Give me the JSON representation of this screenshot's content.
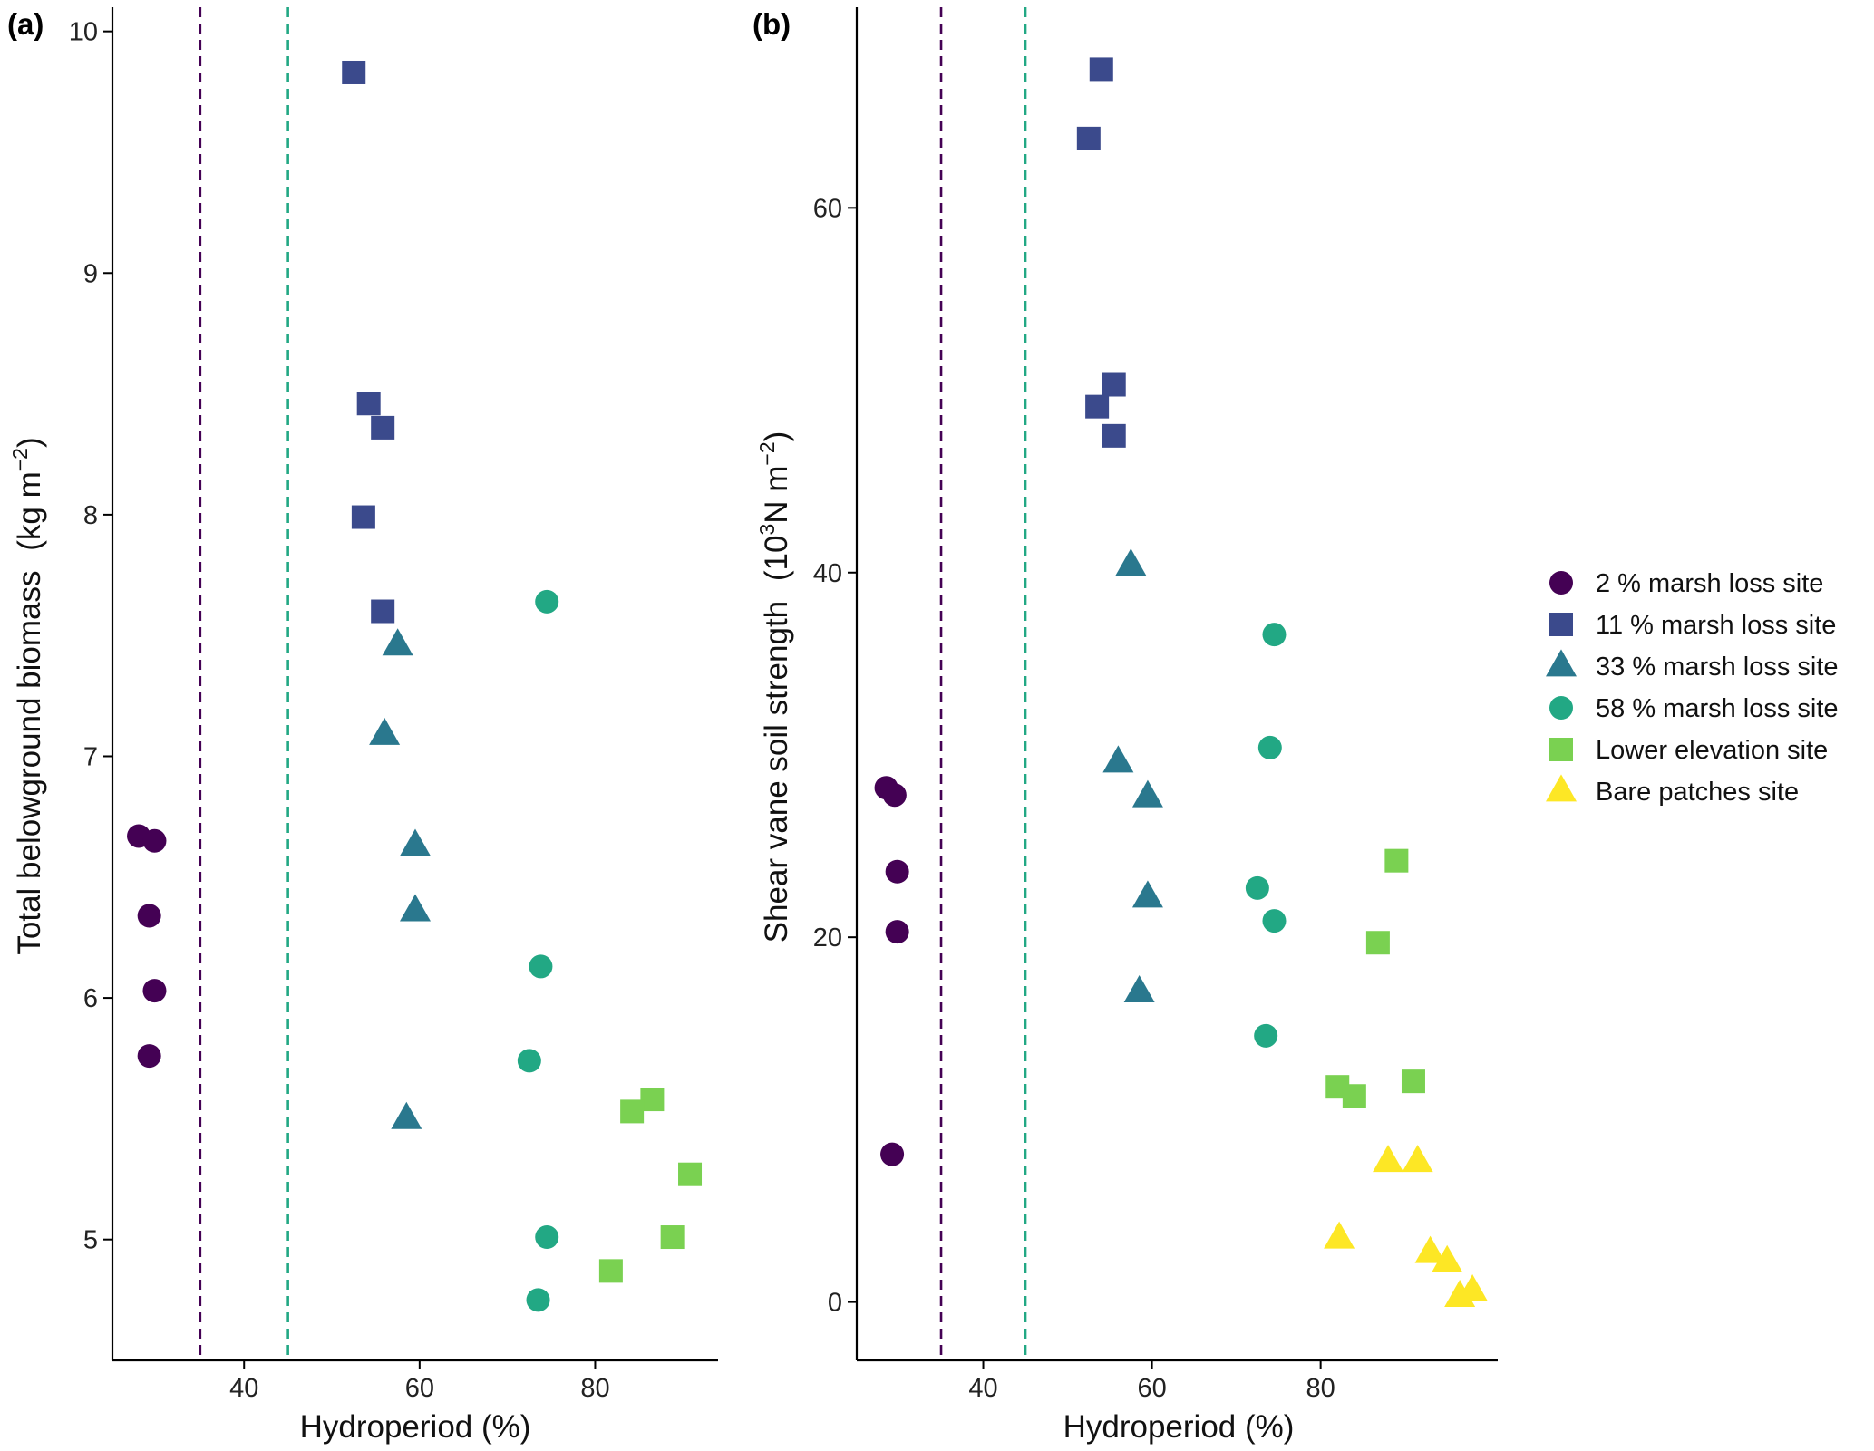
{
  "legend": {
    "entries": [
      {
        "label": "2 % marsh loss site",
        "color": "#440154",
        "shape": "circle"
      },
      {
        "label": "11 % marsh loss site",
        "color": "#3b4a8c",
        "shape": "square"
      },
      {
        "label": "33 % marsh loss site",
        "color": "#2a788e",
        "shape": "triangle"
      },
      {
        "label": "58 % marsh loss site",
        "color": "#22a884",
        "shape": "circle"
      },
      {
        "label": "Lower elevation site",
        "color": "#7ad151",
        "shape": "square"
      },
      {
        "label": "Bare patches site",
        "color": "#fde725",
        "shape": "triangle"
      }
    ]
  },
  "chart_data": [
    {
      "type": "scatter",
      "panel_label": "(a)",
      "xlabel": "Hydroperiod (%)",
      "ylabel": "Total belowground biomass",
      "ylabel_unit": "(kg m",
      "ylabel_sup": "−2",
      "ylabel_close": ")",
      "xlim": [
        25,
        94
      ],
      "ylim": [
        4.5,
        10.1
      ],
      "xticks": [
        40,
        60,
        80
      ],
      "yticks": [
        5,
        6,
        7,
        8,
        9,
        10
      ],
      "vlines": [
        {
          "x": 35,
          "color": "#440154"
        },
        {
          "x": 45,
          "color": "#22a884"
        }
      ],
      "series": [
        {
          "name": "2 % marsh loss site",
          "points": [
            [
              28,
              6.67
            ],
            [
              29.8,
              6.65
            ],
            [
              29.2,
              6.34
            ],
            [
              29.8,
              6.03
            ],
            [
              29.2,
              5.76
            ]
          ]
        },
        {
          "name": "11 % marsh loss site",
          "points": [
            [
              52.5,
              9.83
            ],
            [
              54.2,
              8.46
            ],
            [
              55.8,
              8.36
            ],
            [
              53.6,
              7.99
            ],
            [
              55.8,
              7.6
            ]
          ]
        },
        {
          "name": "33 % marsh loss site",
          "points": [
            [
              57.5,
              7.46
            ],
            [
              56,
              7.09
            ],
            [
              59.5,
              6.63
            ],
            [
              59.5,
              6.36
            ],
            [
              58.5,
              5.5
            ]
          ]
        },
        {
          "name": "58 % marsh loss site",
          "points": [
            [
              74.5,
              7.64
            ],
            [
              73.8,
              6.13
            ],
            [
              72.5,
              5.74
            ],
            [
              74.5,
              5.01
            ],
            [
              73.5,
              4.75
            ]
          ]
        },
        {
          "name": "Lower elevation site",
          "points": [
            [
              86.5,
              5.58
            ],
            [
              84.2,
              5.53
            ],
            [
              90.8,
              5.27
            ],
            [
              88.8,
              5.01
            ],
            [
              81.8,
              4.87
            ]
          ]
        },
        {
          "name": "Bare patches site",
          "points": []
        }
      ]
    },
    {
      "type": "scatter",
      "panel_label": "(b)",
      "xlabel": "Hydroperiod (%)",
      "ylabel": "Shear vane soil strength",
      "ylabel_unit": "(10",
      "ylabel_sup_1": "3",
      "ylabel_unit_2": "N m",
      "ylabel_sup": "−2",
      "ylabel_close": ")",
      "xlim": [
        25,
        101
      ],
      "ylim": [
        -3.2,
        71
      ],
      "xticks": [
        40,
        60,
        80
      ],
      "yticks": [
        0,
        20,
        40,
        60
      ],
      "vlines": [
        {
          "x": 35,
          "color": "#440154"
        },
        {
          "x": 45,
          "color": "#22a884"
        }
      ],
      "series": [
        {
          "name": "2 % marsh loss site",
          "points": [
            [
              28.5,
              28.2
            ],
            [
              29.5,
              27.8
            ],
            [
              29.8,
              23.6
            ],
            [
              29.8,
              20.3
            ],
            [
              29.2,
              8.1
            ]
          ]
        },
        {
          "name": "11 % marsh loss site",
          "points": [
            [
              54,
              67.6
            ],
            [
              52.5,
              63.8
            ],
            [
              55.5,
              50.3
            ],
            [
              53.5,
              49.1
            ],
            [
              55.5,
              47.5
            ]
          ]
        },
        {
          "name": "33 % marsh loss site",
          "points": [
            [
              57.5,
              40.4
            ],
            [
              56,
              29.6
            ],
            [
              59.5,
              27.7
            ],
            [
              59.5,
              22.2
            ],
            [
              58.5,
              17.0
            ]
          ]
        },
        {
          "name": "58 % marsh loss site",
          "points": [
            [
              74.5,
              36.6
            ],
            [
              74,
              30.4
            ],
            [
              72.5,
              22.7
            ],
            [
              74.5,
              20.9
            ],
            [
              73.5,
              14.6
            ]
          ]
        },
        {
          "name": "Lower elevation site",
          "points": [
            [
              89,
              24.2
            ],
            [
              86.8,
              19.7
            ],
            [
              91,
              12.1
            ],
            [
              82,
              11.8
            ],
            [
              84,
              11.3
            ]
          ]
        },
        {
          "name": "Bare patches site",
          "points": [
            [
              88,
              7.7
            ],
            [
              91.5,
              7.7
            ],
            [
              82.2,
              3.5
            ],
            [
              93,
              2.7
            ],
            [
              95,
              2.2
            ],
            [
              96.5,
              0.3
            ],
            [
              98,
              0.6
            ]
          ]
        }
      ]
    }
  ]
}
